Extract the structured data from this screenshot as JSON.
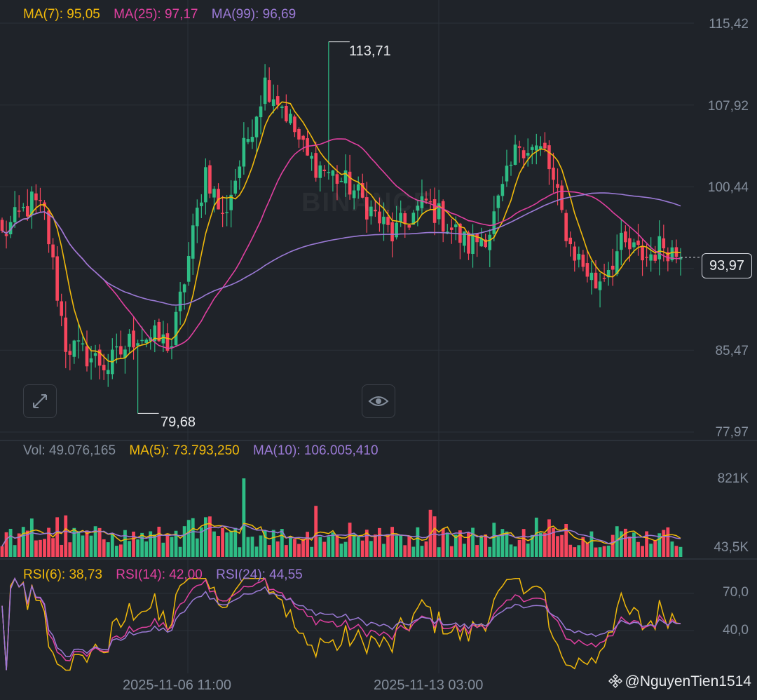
{
  "colors": {
    "up": "#2ebd85",
    "down": "#f6465d",
    "ma7": "#f0b90b",
    "ma25": "#e040a0",
    "ma99": "#9b7ad6",
    "grid": "#2b3139",
    "axis": "#848e9c"
  },
  "main": {
    "legend": {
      "ma7": "MA(7): 95,05",
      "ma25": "MA(25): 97,17",
      "ma99": "MA(99): 96,69"
    },
    "price_labels": [
      "115,42",
      "107,92",
      "100,44",
      "85,47",
      "77,97"
    ],
    "current_price": "93,97",
    "high_label": "113,71",
    "low_label": "79,68",
    "watermark": "BINANCE"
  },
  "volume": {
    "legend": {
      "vol": "Vol: 49.076,165",
      "ma5": "MA(5): 73.793,250",
      "ma10": "MA(10): 106.005,410"
    },
    "labels": [
      "821K",
      "43,5K"
    ]
  },
  "rsi": {
    "legend": {
      "rsi6": "RSI(6): 38,73",
      "rsi14": "RSI(14): 42,00",
      "rsi24": "RSI(24): 44,55"
    },
    "labels": [
      "70,0",
      "40,0"
    ]
  },
  "time_labels": [
    "2025-11-06 11:00",
    "2025-11-13 03:00"
  ],
  "footer": {
    "user": "@NguyenTien1514"
  },
  "icons": {
    "expand": "expand-icon",
    "eye": "eye-icon",
    "brand": "binance-logo-icon"
  },
  "chart_data": {
    "type": "candlestick",
    "price_axis": {
      "ticks": [
        115.42,
        107.92,
        100.44,
        85.47,
        77.97
      ]
    },
    "highest": 113.71,
    "lowest": 79.68,
    "last": 93.97,
    "waypoints": [
      [
        0,
        96.0
      ],
      [
        7,
        99.0
      ],
      [
        10,
        98.0
      ],
      [
        15,
        86.0
      ],
      [
        25,
        84.0
      ],
      [
        32,
        87.0
      ],
      [
        40,
        86.0
      ],
      [
        48,
        102.0
      ],
      [
        52,
        97.5
      ],
      [
        58,
        105.0
      ],
      [
        62,
        110.0
      ],
      [
        66,
        108.0
      ],
      [
        72,
        103.0
      ],
      [
        82,
        100.5
      ],
      [
        92,
        96.0
      ],
      [
        100,
        99.0
      ],
      [
        110,
        95.0
      ],
      [
        115,
        96.5
      ],
      [
        122,
        104.5
      ],
      [
        128,
        103.5
      ],
      [
        134,
        95.0
      ],
      [
        140,
        91.5
      ],
      [
        146,
        95.0
      ],
      [
        152,
        94.0
      ],
      [
        156,
        95.2
      ],
      [
        160,
        94.0
      ]
    ],
    "volume_axis": {
      "ticks": [
        821000,
        43500
      ]
    },
    "rsi_axis": {
      "ticks": [
        70.0,
        40.0
      ]
    }
  }
}
